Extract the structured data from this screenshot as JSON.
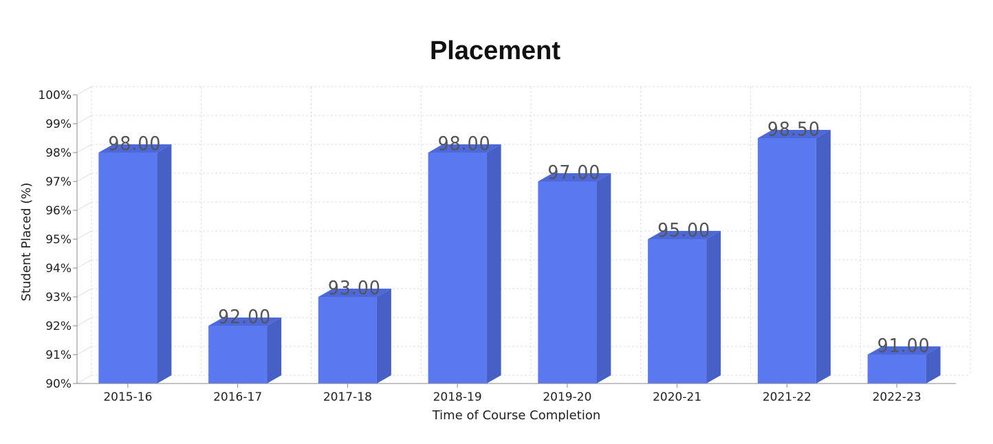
{
  "chart_data": {
    "type": "bar",
    "title": "Placement",
    "xlabel": "Time of Course Completion",
    "ylabel": "Student Placed (%)",
    "categories": [
      "2015-16",
      "2016-17",
      "2017-18",
      "2018-19",
      "2019-20",
      "2020-21",
      "2021-22",
      "2022-23"
    ],
    "values": [
      98,
      92,
      93,
      98,
      97,
      95,
      98.5,
      91
    ],
    "data_labels": [
      "98.00",
      "92.00",
      "93.00",
      "98.00",
      "97.00",
      "95.00",
      "98.50",
      "91.00"
    ],
    "ylim": [
      90,
      100
    ],
    "yticks": [
      {
        "value": 90,
        "label": "90%"
      },
      {
        "value": 91,
        "label": "91%"
      },
      {
        "value": 92,
        "label": "92%"
      },
      {
        "value": 93,
        "label": "93%"
      },
      {
        "value": 94,
        "label": "94%"
      },
      {
        "value": 95,
        "label": "95%"
      },
      {
        "value": 96,
        "label": "96%"
      },
      {
        "value": 97,
        "label": "97%"
      },
      {
        "value": 98,
        "label": "98%"
      },
      {
        "value": 99,
        "label": "99%"
      },
      {
        "value": 100,
        "label": "100%"
      }
    ],
    "grid": true,
    "colors": {
      "bar_front": "#5A78EF",
      "bar_side": "#4760C6",
      "bar_top": "#4D68D8",
      "grid": "#dddddd",
      "axis": "#888888"
    }
  }
}
